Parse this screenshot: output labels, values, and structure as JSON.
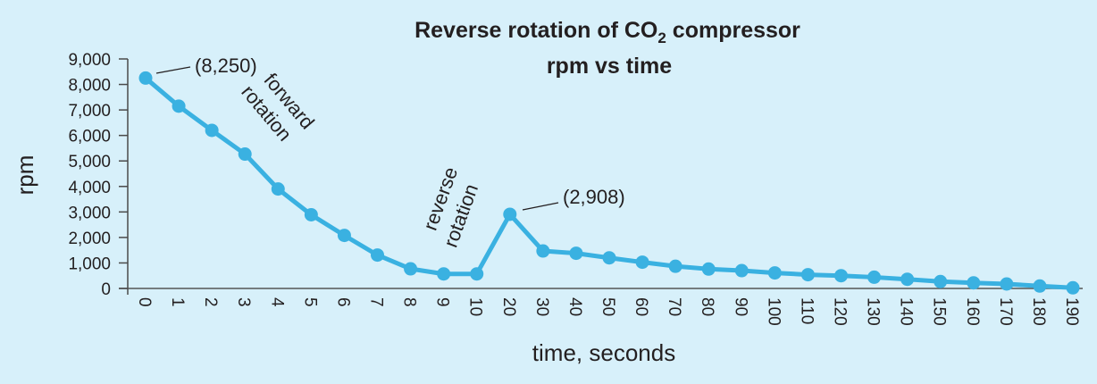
{
  "chart_data": {
    "type": "line",
    "title_main": "Reverse rotation of CO",
    "title_sub": "2",
    "title_rest": " compressor",
    "subtitle": "rpm vs time",
    "xlabel": "time, seconds",
    "ylabel": "rpm",
    "ylim": [
      0,
      9000
    ],
    "yticks": [
      "0",
      "1,000",
      "2,000",
      "3,000",
      "4,000",
      "5,000",
      "6,000",
      "7,000",
      "8,000",
      "9,000"
    ],
    "categories": [
      "0",
      "1",
      "2",
      "3",
      "4",
      "5",
      "6",
      "7",
      "8",
      "9",
      "10",
      "20",
      "30",
      "40",
      "50",
      "60",
      "70",
      "80",
      "90",
      "100",
      "110",
      "120",
      "130",
      "140",
      "150",
      "160",
      "170",
      "180",
      "190"
    ],
    "series": [
      {
        "name": "rpm",
        "values": [
          8250,
          7150,
          6200,
          5270,
          3900,
          2890,
          2080,
          1310,
          770,
          570,
          570,
          2908,
          1470,
          1380,
          1200,
          1030,
          870,
          760,
          700,
          610,
          540,
          500,
          440,
          360,
          270,
          220,
          175,
          95,
          25
        ]
      }
    ],
    "annotations": [
      {
        "text": "(8,250)",
        "category": "0"
      },
      {
        "text": "(2,908)",
        "category": "20"
      },
      {
        "line1": "forward",
        "line2": "rotation"
      },
      {
        "line1": "reverse",
        "line2": "rotation"
      }
    ],
    "grid": false,
    "line_color": "#3ab1e1"
  }
}
